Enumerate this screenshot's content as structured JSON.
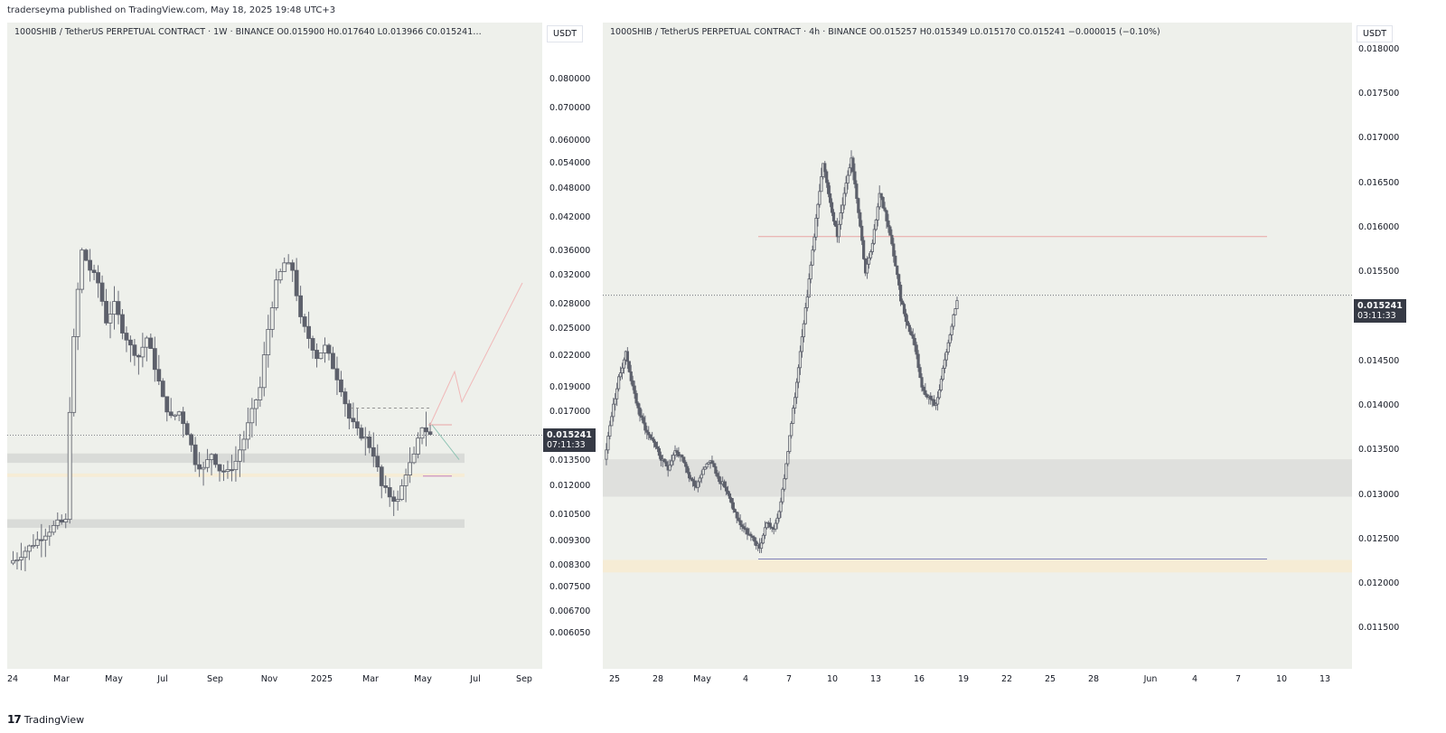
{
  "header": {
    "text": "traderseyma published on TradingView.com, May 18, 2025 19:48 UTC+3"
  },
  "left": {
    "title": "1000SHIB / TetherUS PERPETUAL CONTRACT · 1W · BINANCE   O0.015900  H0.017640  L0.013966  C0.015241…",
    "unit": "USDT",
    "price": "0.015241",
    "countdown": "07:11:33",
    "yticks": [
      "0.080000",
      "0.070000",
      "0.060000",
      "0.054000",
      "0.048000",
      "0.042000",
      "0.036000",
      "0.032000",
      "0.028000",
      "0.025000",
      "0.022000",
      "0.019000",
      "0.017000",
      "0.015000",
      "0.013500",
      "0.012000",
      "0.010500",
      "0.009300",
      "0.008300",
      "0.007500",
      "0.006700",
      "0.006050"
    ],
    "xticks": [
      "24",
      "Mar",
      "May",
      "Jul",
      "Sep",
      "Nov",
      "2025",
      "Mar",
      "May",
      "Jul",
      "Sep"
    ]
  },
  "right": {
    "title": "1000SHIB / TetherUS PERPETUAL CONTRACT · 4h · BINANCE   O0.015257  H0.015349  L0.015170  C0.015241  −0.000015 (−0.10%)",
    "unit": "USDT",
    "price": "0.015241",
    "countdown": "03:11:33",
    "yticks": [
      "0.018000",
      "0.017500",
      "0.017000",
      "0.016500",
      "0.016000",
      "0.015500",
      "0.015000",
      "0.014500",
      "0.014000",
      "0.013500",
      "0.013000",
      "0.012500",
      "0.012000",
      "0.011500"
    ],
    "xticks": [
      "25",
      "28",
      "May",
      "4",
      "7",
      "10",
      "13",
      "16",
      "19",
      "22",
      "25",
      "28",
      "Jun",
      "4",
      "7",
      "10",
      "13"
    ]
  },
  "footer": {
    "logo": "17",
    "brand": "TradingView"
  },
  "colors": {
    "panel_bg": "#eef0eb",
    "candle": "#5d606b",
    "resistance": "#e8a4a4",
    "support_zone": "#d9dbd8",
    "demand_zone": "#f6ecd5",
    "badge": "#363a45"
  },
  "chart_data": [
    {
      "type": "candlestick",
      "title": "1000SHIB / TetherUS PERPETUAL CONTRACT · 1W · BINANCE",
      "scale": "log",
      "ylim": [
        0.0057,
        0.09
      ],
      "last_price": 0.015241,
      "ohlc_last": {
        "open": 0.0159,
        "high": 0.01764,
        "low": 0.013966,
        "close": 0.015241
      },
      "x_range": [
        "2024-01",
        "2025-09"
      ],
      "close_path": [
        0.0084,
        0.0086,
        0.0089,
        0.0092,
        0.0095,
        0.0098,
        0.0101,
        0.0102,
        0.024,
        0.036,
        0.033,
        0.031,
        0.026,
        0.028,
        0.025,
        0.023,
        0.022,
        0.024,
        0.021,
        0.018,
        0.0165,
        0.017,
        0.0155,
        0.0135,
        0.013,
        0.014,
        0.013,
        0.0128,
        0.0135,
        0.015,
        0.017,
        0.019,
        0.025,
        0.031,
        0.034,
        0.033,
        0.026,
        0.024,
        0.022,
        0.023,
        0.021,
        0.019,
        0.0165,
        0.0155,
        0.015,
        0.014,
        0.012,
        0.0115,
        0.0112,
        0.0128,
        0.0138,
        0.0159,
        0.01524
      ],
      "annotations": [
        "support zone 0.0135–0.0140",
        "support zone 0.0098–0.0102",
        "demand line 0.0126",
        "resistance line 0.0160",
        "projection to 0.031"
      ]
    },
    {
      "type": "candlestick",
      "title": "1000SHIB / TetherUS PERPETUAL CONTRACT · 4h · BINANCE",
      "scale": "linear",
      "ylim": [
        0.0112,
        0.0182
      ],
      "last_price": 0.015241,
      "ohlc_last": {
        "open": 0.015257,
        "high": 0.015349,
        "low": 0.01517,
        "close": 0.015241,
        "change": -1.5e-05,
        "change_pct": -0.1
      },
      "x_range": [
        "Apr 25",
        "Jun 13"
      ],
      "close_path": [
        0.0134,
        0.0139,
        0.0143,
        0.0146,
        0.0142,
        0.0139,
        0.0137,
        0.0136,
        0.0134,
        0.0133,
        0.0135,
        0.0134,
        0.0132,
        0.0131,
        0.0133,
        0.0134,
        0.0132,
        0.0131,
        0.0129,
        0.0127,
        0.0126,
        0.0125,
        0.0124,
        0.0127,
        0.0126,
        0.0129,
        0.0135,
        0.0141,
        0.0148,
        0.0154,
        0.0161,
        0.0167,
        0.0163,
        0.0159,
        0.0164,
        0.0168,
        0.0162,
        0.0155,
        0.0158,
        0.0164,
        0.0161,
        0.0157,
        0.0152,
        0.0149,
        0.0147,
        0.0142,
        0.0141,
        0.014,
        0.0144,
        0.0148,
        0.0152
      ],
      "annotations": [
        "resistance line 0.0159",
        "supply zone 0.0130–0.0134",
        "demand zone 0.0121–0.0123",
        "low line 0.0123"
      ]
    }
  ]
}
